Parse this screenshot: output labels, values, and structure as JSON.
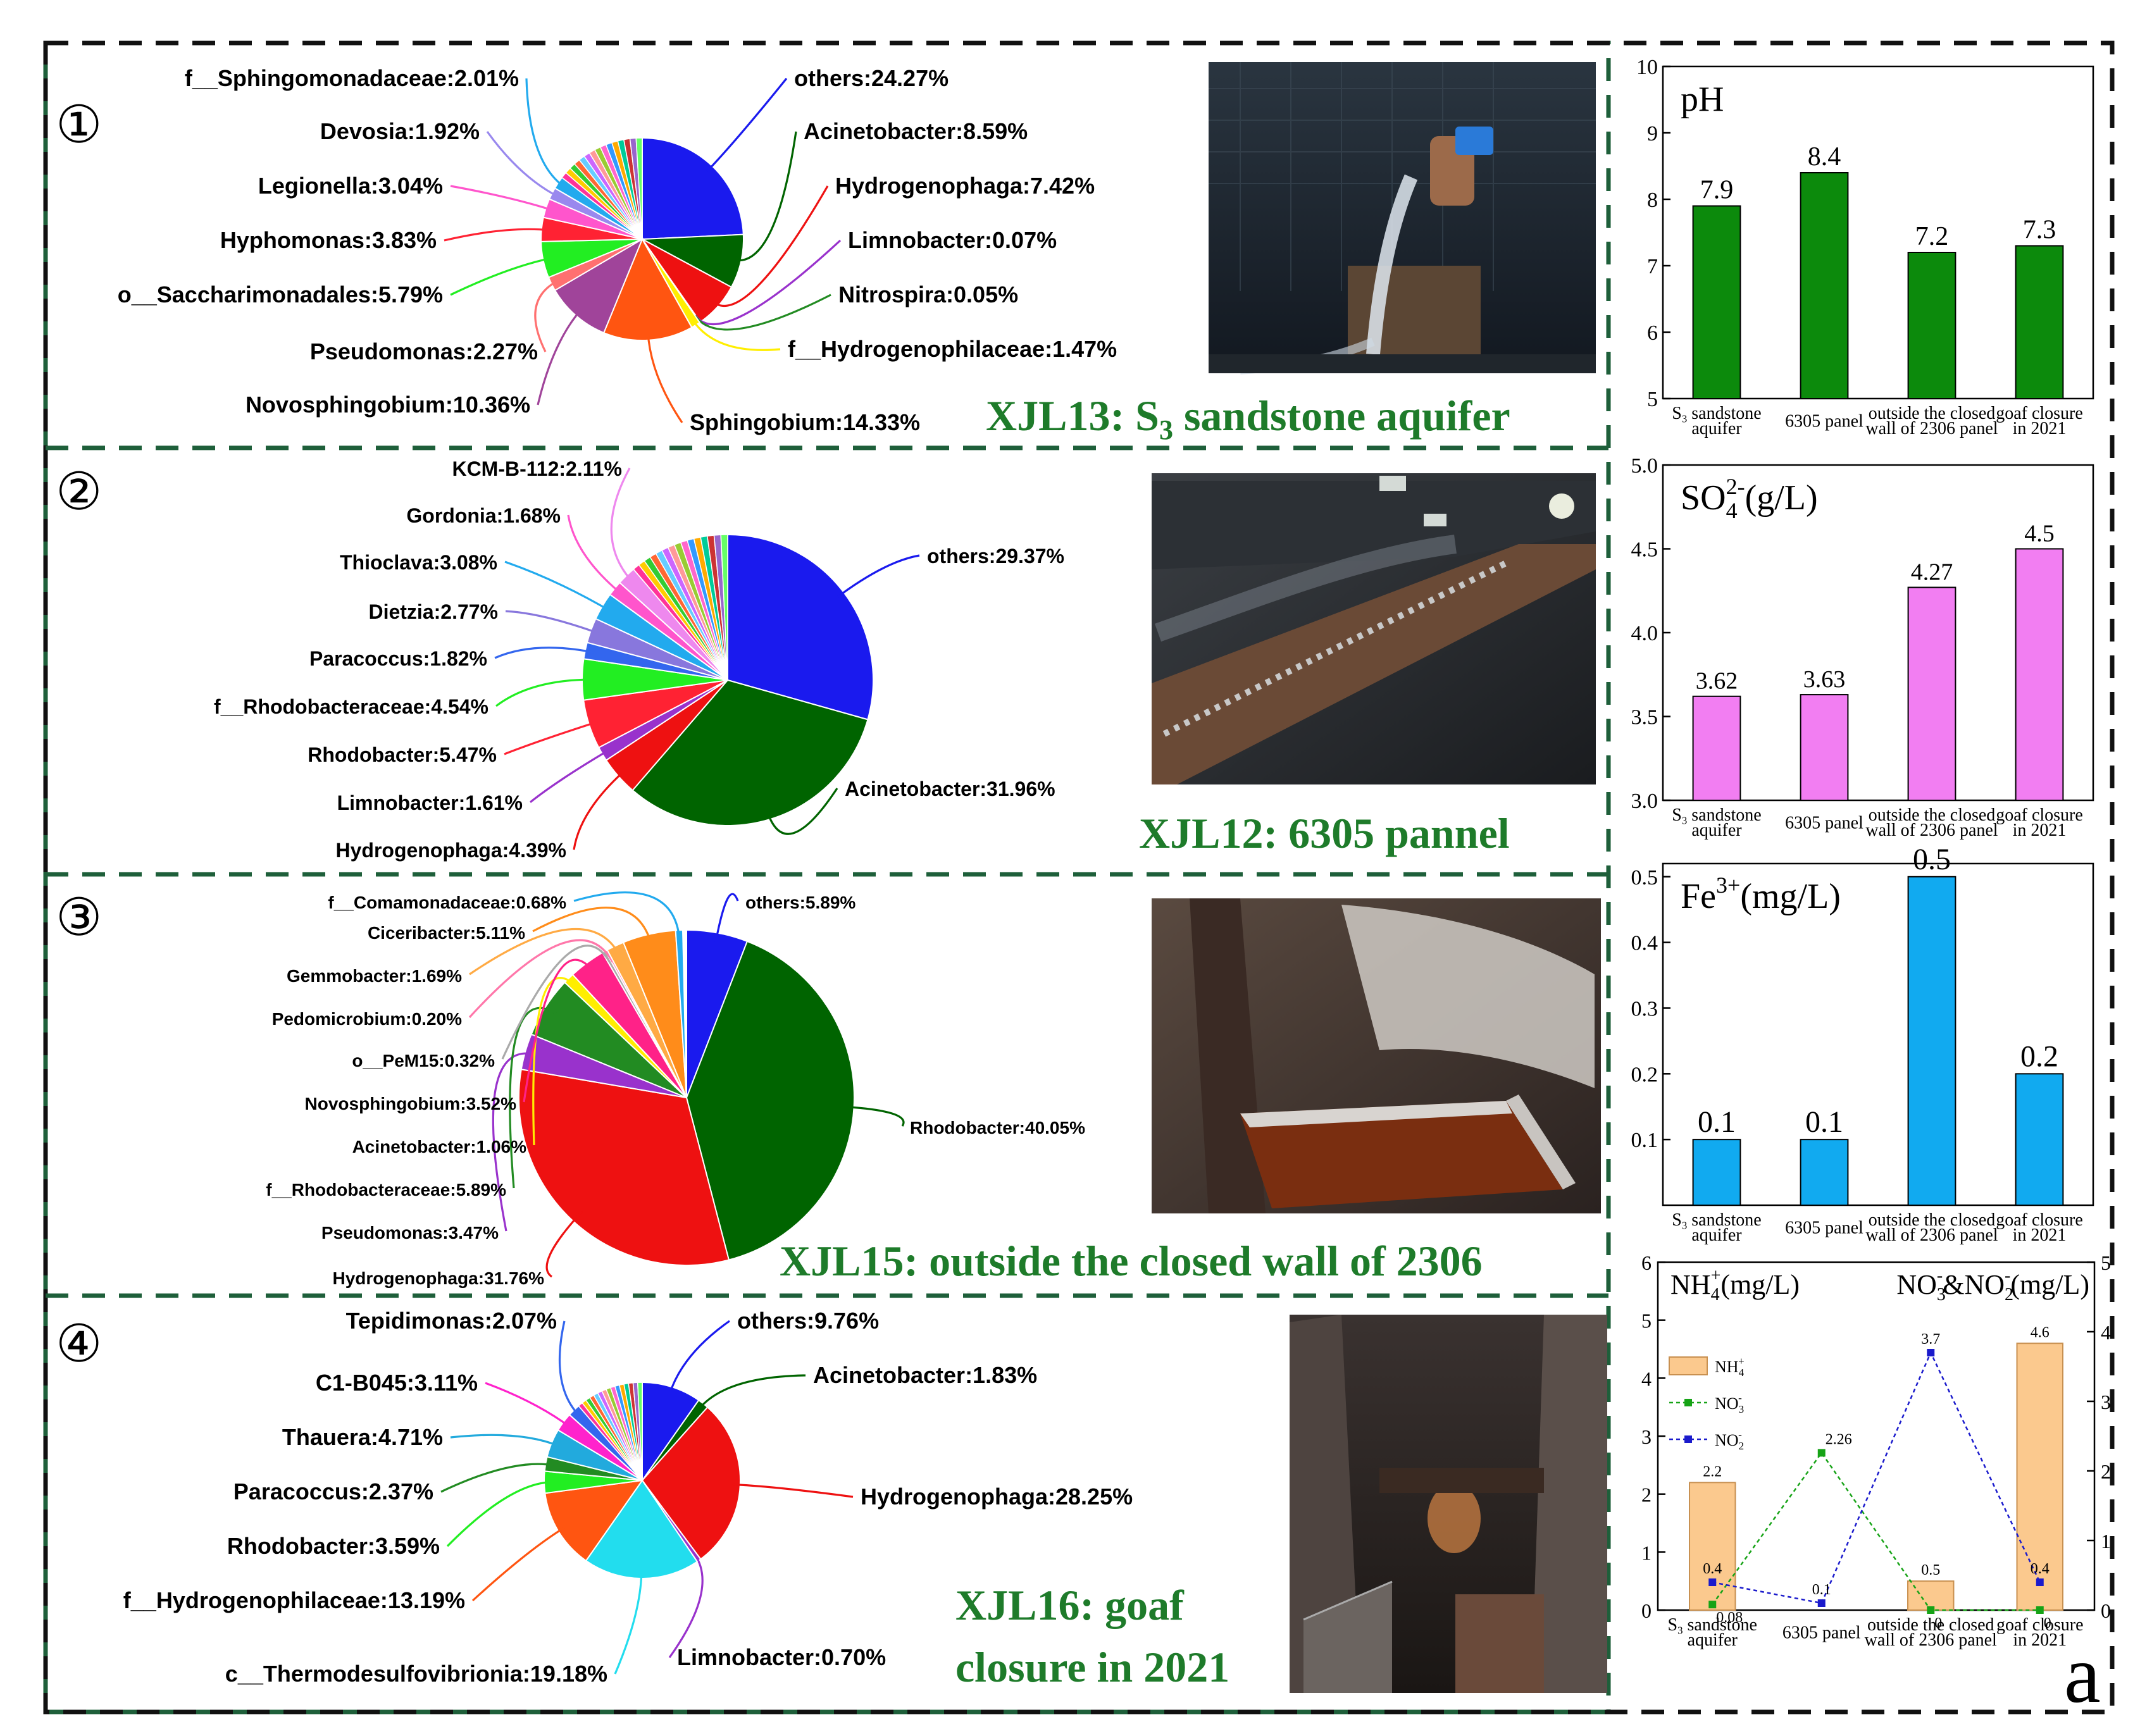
{
  "figure_letter": "a",
  "chart_data": [
    {
      "type": "pie",
      "id": "pie1",
      "marker": "①",
      "title": "XJL13: S3 sandstone aquifer",
      "title_main": "XJL13: S",
      "title_sub": "3",
      "title_tail": " sandstone aquifer",
      "slices": [
        {
          "label": "others:24.27%",
          "value": 24.27,
          "color": "#1a1aee"
        },
        {
          "label": "Acinetobacter:8.59%",
          "value": 8.59,
          "color": "#006400"
        },
        {
          "label": "Hydrogenophaga:7.42%",
          "value": 7.42,
          "color": "#ee1111"
        },
        {
          "label": "Limnobacter:0.07%",
          "value": 0.07,
          "color": "#9932cc"
        },
        {
          "label": "Nitrospira:0.05%",
          "value": 0.05,
          "color": "#228b22"
        },
        {
          "label": "f__Hydrogenophilaceae:1.47%",
          "value": 1.47,
          "color": "#ffee00"
        },
        {
          "label": "Sphingobium:14.33%",
          "value": 14.33,
          "color": "#ff5511"
        },
        {
          "label": "Novosphingobium:10.36%",
          "value": 10.36,
          "color": "#a0449a"
        },
        {
          "label": "Pseudomonas:2.27%",
          "value": 2.27,
          "color": "#ff7070"
        },
        {
          "label": "o__Saccharimonadales:5.79%",
          "value": 5.79,
          "color": "#22ee22"
        },
        {
          "label": "Hyphomonas:3.83%",
          "value": 3.83,
          "color": "#ff2233"
        },
        {
          "label": "Legionella:3.04%",
          "value": 3.04,
          "color": "#ff55cc"
        },
        {
          "label": "Devosia:1.92%",
          "value": 1.92,
          "color": "#9988ee"
        },
        {
          "label": "f__Sphingomonadaceae:2.01%",
          "value": 2.01,
          "color": "#22aaee"
        },
        {
          "label": "",
          "value": 14.58,
          "color": "mixed"
        }
      ]
    },
    {
      "type": "pie",
      "id": "pie2",
      "marker": "②",
      "title": "XJL12: 6305 pannel",
      "slices": [
        {
          "label": "others:29.37%",
          "value": 29.37,
          "color": "#1a1aee"
        },
        {
          "label": "Acinetobacter:31.96%",
          "value": 31.96,
          "color": "#006400"
        },
        {
          "label": "Hydrogenophaga:4.39%",
          "value": 4.39,
          "color": "#ee1111"
        },
        {
          "label": "Limnobacter:1.61%",
          "value": 1.61,
          "color": "#9932cc"
        },
        {
          "label": "Rhodobacter:5.47%",
          "value": 5.47,
          "color": "#ff2233"
        },
        {
          "label": "f__Rhodobacteraceae:4.54%",
          "value": 4.54,
          "color": "#22ee22"
        },
        {
          "label": "Paracoccus:1.82%",
          "value": 1.82,
          "color": "#3366ee"
        },
        {
          "label": "Dietzia:2.77%",
          "value": 2.77,
          "color": "#8877dd"
        },
        {
          "label": "Thioclava:3.08%",
          "value": 3.08,
          "color": "#22aaee"
        },
        {
          "label": "Gordonia:1.68%",
          "value": 1.68,
          "color": "#ff55cc"
        },
        {
          "label": "KCM-B-112:2.11%",
          "value": 2.11,
          "color": "#ee88ee"
        },
        {
          "label": "",
          "value": 11.2,
          "color": "mixed"
        }
      ]
    },
    {
      "type": "pie",
      "id": "pie3",
      "marker": "③",
      "title": "XJL15: outside the closed wall of 2306",
      "slices": [
        {
          "label": "others:5.89%",
          "value": 5.89,
          "color": "#1a1aee"
        },
        {
          "label": "Rhodobacter:40.05%",
          "value": 40.05,
          "color": "#006400"
        },
        {
          "label": "Hydrogenophaga:31.76%",
          "value": 31.76,
          "color": "#ee1111"
        },
        {
          "label": "Pseudomonas:3.47%",
          "value": 3.47,
          "color": "#9932cc"
        },
        {
          "label": "f__Rhodobacteraceae:5.89%",
          "value": 5.89,
          "color": "#228b22"
        },
        {
          "label": "Acinetobacter:1.06%",
          "value": 1.06,
          "color": "#ffee00"
        },
        {
          "label": "Novosphingobium:3.52%",
          "value": 3.52,
          "color": "#ff2288"
        },
        {
          "label": "o__PeM15:0.32%",
          "value": 0.32,
          "color": "#aaaaaa"
        },
        {
          "label": "Pedomicrobium:0.20%",
          "value": 0.2,
          "color": "#ff77aa"
        },
        {
          "label": "Gemmobacter:1.69%",
          "value": 1.69,
          "color": "#ffaa44"
        },
        {
          "label": "Ciceribacter:5.11%",
          "value": 5.11,
          "color": "#ff8c1a"
        },
        {
          "label": "f__Comamonadaceae:0.68%",
          "value": 0.68,
          "color": "#22aaee"
        },
        {
          "label": "",
          "value": 0.36,
          "color": "mixed"
        }
      ]
    },
    {
      "type": "pie",
      "id": "pie4",
      "marker": "④",
      "title": "XJL16: goaf closure in 2021",
      "title_line1": "XJL16: goaf",
      "title_line2": "closure in 2021",
      "slices": [
        {
          "label": "others:9.76%",
          "value": 9.76,
          "color": "#1a1aee"
        },
        {
          "label": "Acinetobacter:1.83%",
          "value": 1.83,
          "color": "#006400"
        },
        {
          "label": "Hydrogenophaga:28.25%",
          "value": 28.25,
          "color": "#ee1111"
        },
        {
          "label": "Limnobacter:0.70%",
          "value": 0.7,
          "color": "#9932cc"
        },
        {
          "label": "c__Thermodesulfovibrionia:19.18%",
          "value": 19.18,
          "color": "#22ddee"
        },
        {
          "label": "f__Hydrogenophilaceae:13.19%",
          "value": 13.19,
          "color": "#ff5511"
        },
        {
          "label": "Rhodobacter:3.59%",
          "value": 3.59,
          "color": "#22ee22"
        },
        {
          "label": "Paracoccus:2.37%",
          "value": 2.37,
          "color": "#228b22"
        },
        {
          "label": "Thauera:4.71%",
          "value": 4.71,
          "color": "#22aadd"
        },
        {
          "label": "C1-B045:3.11%",
          "value": 3.11,
          "color": "#ff22cc"
        },
        {
          "label": "Tepidimonas:2.07%",
          "value": 2.07,
          "color": "#3366ee"
        },
        {
          "label": "",
          "value": 11.24,
          "color": "mixed"
        }
      ]
    },
    {
      "type": "bar",
      "id": "ph",
      "title": "pH",
      "categories": [
        "S3 sandstone aquifer",
        "6305 panel",
        "outside the closed wall of 2306 panel",
        "goaf closure in 2021"
      ],
      "values": [
        7.9,
        8.4,
        7.2,
        7.3
      ],
      "value_labels": [
        "7.9",
        "8.4",
        "7.2",
        "7.3"
      ],
      "ylim": [
        5,
        10
      ],
      "yticks": [
        "5",
        "6",
        "7",
        "8",
        "9",
        "10"
      ],
      "color": "#0c8a0c"
    },
    {
      "type": "bar",
      "id": "so4",
      "title": "SO4 2-(g/L)",
      "title_main": "SO",
      "title_sub": "4",
      "title_sup": "2-",
      "title_tail": "(g/L)",
      "categories": [
        "S3 sandstone aquifer",
        "6305 panel",
        "outside the closed wall of 2306 panel",
        "goaf closure in 2021"
      ],
      "values": [
        3.62,
        3.63,
        4.27,
        4.5
      ],
      "value_labels": [
        "3.62",
        "3.63",
        "4.27",
        "4.5"
      ],
      "ylim": [
        3.0,
        5.0
      ],
      "yticks": [
        "3.0",
        "3.5",
        "4.0",
        "4.5",
        "5.0"
      ],
      "color": "#f27ef2"
    },
    {
      "type": "bar",
      "id": "fe",
      "title": "Fe3+(mg/L)",
      "title_main": "Fe",
      "title_sup": "3+",
      "title_tail": "(mg/L)",
      "categories": [
        "S3 sandstone aquifer",
        "6305 panel",
        "outside the closed wall of 2306 panel",
        "goaf closure in 2021"
      ],
      "values": [
        0.1,
        0.1,
        0.5,
        0.2
      ],
      "value_labels": [
        "0.1",
        "0.1",
        "0.5",
        "0.2"
      ],
      "ylim": [
        0,
        0.52
      ],
      "yticks": [
        "0.1",
        "0.2",
        "0.3",
        "0.4",
        "0.5"
      ],
      "color": "#11aaf0"
    },
    {
      "type": "bar",
      "id": "nitro",
      "title_left": "NH4+(mg/L)",
      "title_right": "NO3-&NO2-(mg/L)",
      "categories": [
        "S3 sandstone aquifer",
        "6305 panel",
        "outside the closed wall of 2306 panel",
        "goaf closure in 2021"
      ],
      "bars": {
        "name": "NH4+",
        "values": [
          2.2,
          0,
          0.5,
          4.6
        ],
        "labels": [
          "2.2",
          "",
          "0.5",
          "4.6"
        ],
        "color": "#fbc98e"
      },
      "lines": [
        {
          "name": "NO3-",
          "values": [
            0.08,
            2.26,
            0,
            0
          ],
          "labels": [
            "0.08",
            "2.26",
            "0",
            "0"
          ],
          "color": "#16a316"
        },
        {
          "name": "NO2-",
          "values": [
            0.4,
            0.1,
            3.7,
            0.4
          ],
          "labels": [
            "0.4",
            "0.1",
            "3.7",
            "0.4"
          ],
          "color": "#1a1acc"
        }
      ],
      "ylim_left": [
        0,
        6
      ],
      "ylim_right": [
        0,
        5
      ],
      "yticks_left": [
        "0",
        "1",
        "2",
        "3",
        "4",
        "5",
        "6"
      ],
      "yticks_right": [
        "0",
        "1",
        "2",
        "3",
        "4",
        "5"
      ]
    }
  ]
}
